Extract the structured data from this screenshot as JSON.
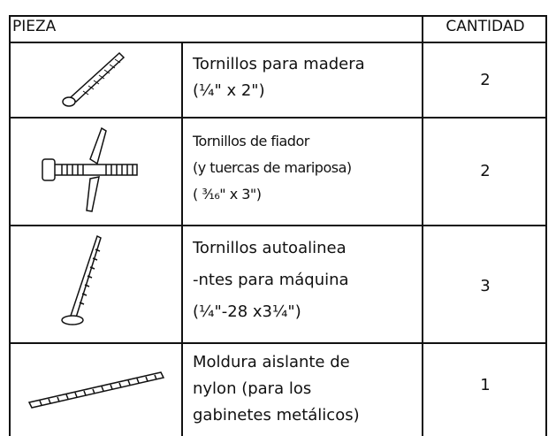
{
  "table": {
    "header": [
      "PIEZA",
      "CANTIDAD"
    ],
    "rows": [
      {
        "description": [
          "Tornillos para madera",
          "(¼\"  x  2\")"
        ],
        "quantity": 2
      },
      {
        "description": [
          "Tornillos de fiador",
          "(y tuercas de mariposa)",
          "( ³⁄₁₆\" x 3\")"
        ],
        "quantity": 2
      },
      {
        "description": [
          "Tornillos autoalinea",
          "-ntes para máquina",
          "(¼\"-28 x3¼\")"
        ],
        "quantity": 3
      },
      {
        "description": [
          "Moldura aislante de",
          "nylon (para los",
          "gabinetes metálicos)"
        ],
        "quantity": 1
      }
    ]
  }
}
